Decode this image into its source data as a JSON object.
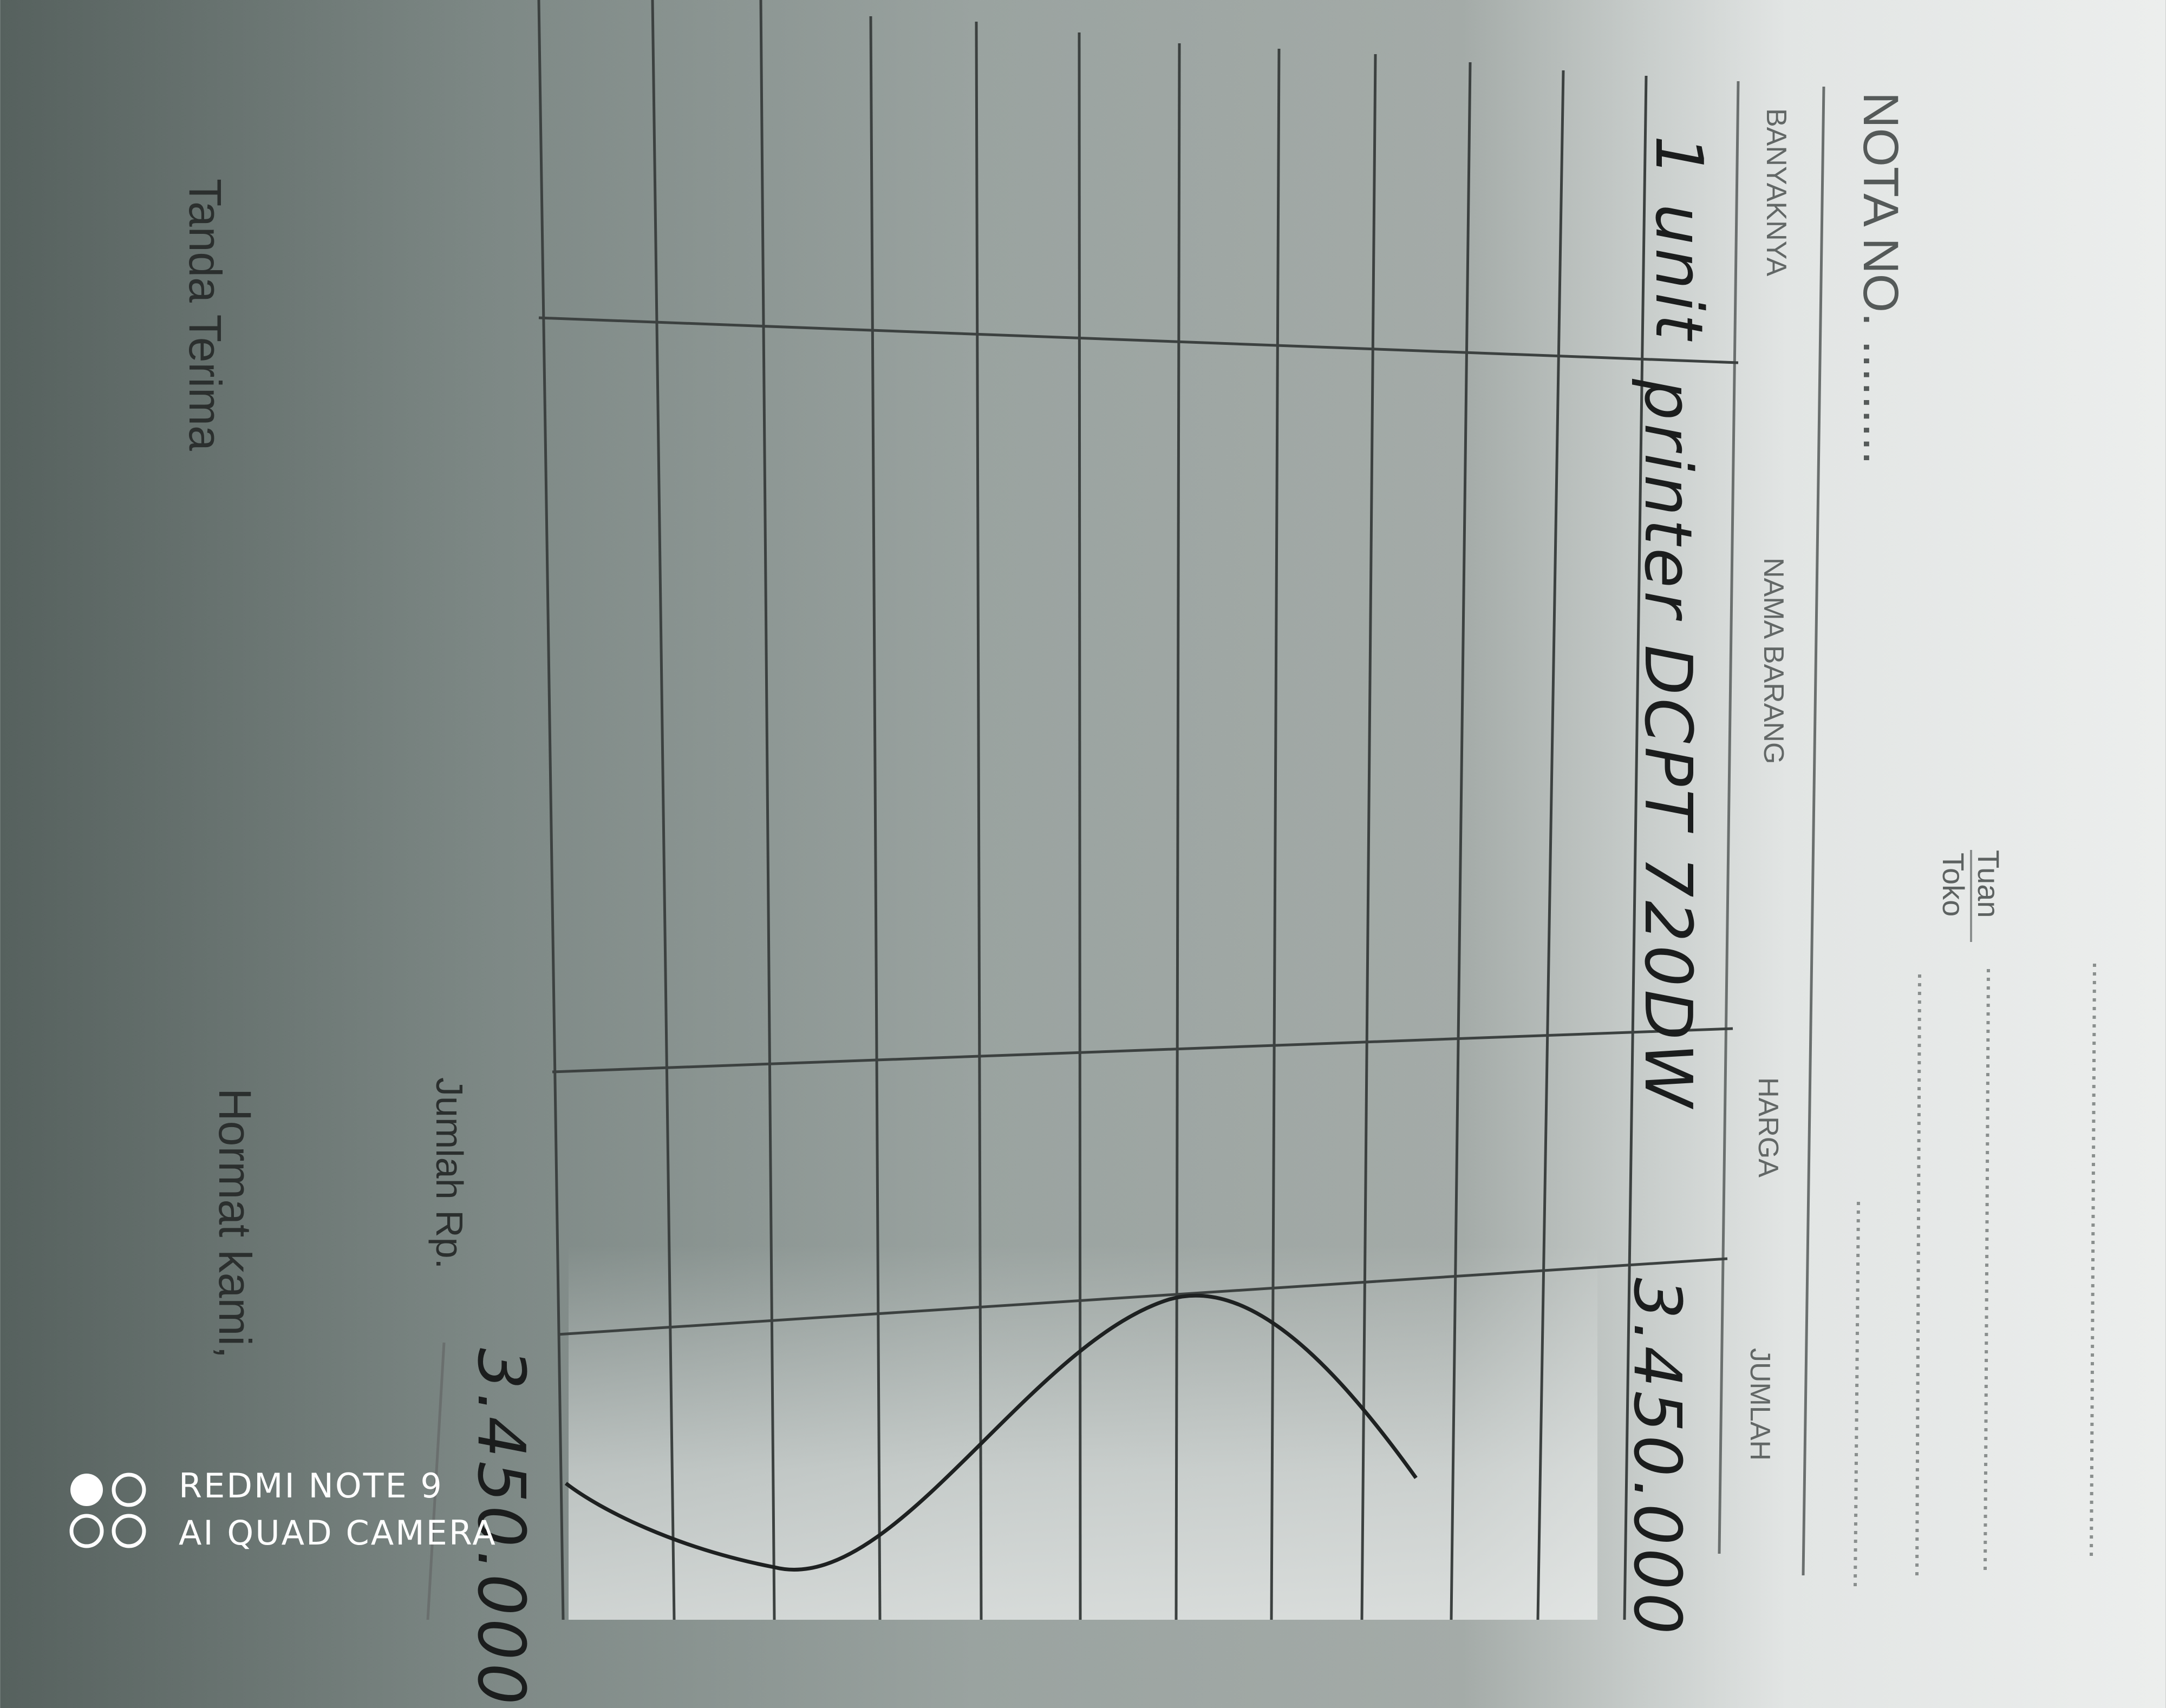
{
  "receipt": {
    "title": "NOTA NO. .........",
    "tuan_label": "Tuan",
    "toko_label": "Toko",
    "columns": [
      "BANYAKNYA",
      "NAMA BARANG",
      "HARGA",
      "JUMLAH"
    ],
    "rows": [
      {
        "banyaknya": "1 unit",
        "nama_barang": "printer DCPT 720DW",
        "harga": "",
        "jumlah": "3.450.000"
      }
    ],
    "total_label": "Jumlah Rp.",
    "total_value": "3.450.000",
    "tanda_terima_label": "Tanda Terima",
    "hormat_kami_label": "Hormat kami,"
  },
  "watermark": {
    "line1": "REDMI NOTE 9",
    "line2": "AI QUAD CAMERA"
  },
  "colors": {
    "paper": "#eceeed",
    "ink": "#1b1d1d",
    "print": "#5d6261"
  }
}
